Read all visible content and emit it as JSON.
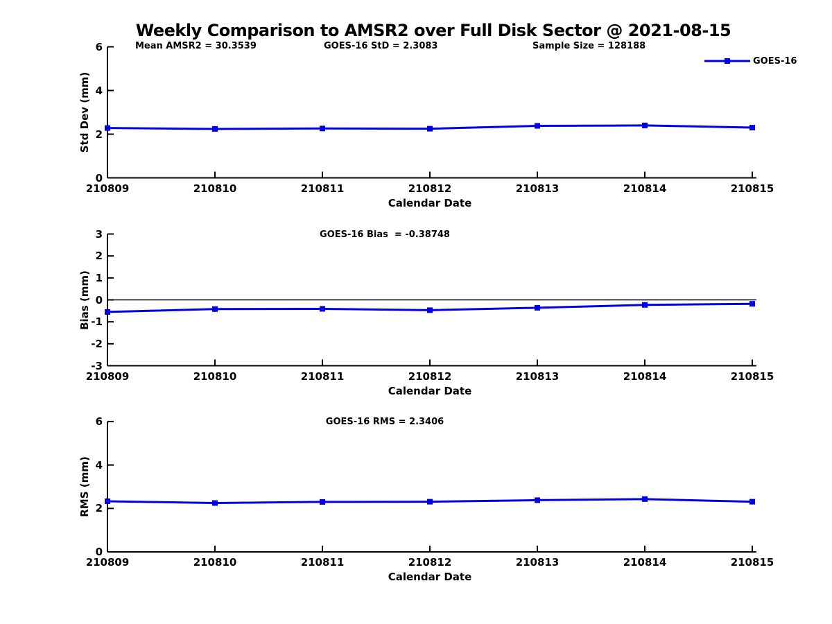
{
  "title": "Weekly Comparison to AMSR2 over Full Disk Sector @ 2021-08-15",
  "stats": {
    "mean_amsr2": "Mean AMSR2 = 30.3539",
    "goes_std": "GOES-16 StD = 2.3083",
    "sample_size": "Sample Size = 128188"
  },
  "legend": {
    "label": "GOES-16",
    "color": "#0000e6",
    "position": "top-right"
  },
  "chart_data": [
    {
      "type": "line",
      "subtitle": "",
      "ylabel": "Std Dev (mm)",
      "xlabel": "Calendar Date",
      "x": [
        "210809",
        "210810",
        "210811",
        "210812",
        "210813",
        "210814",
        "210815"
      ],
      "series": [
        {
          "name": "GOES-16",
          "values": [
            2.28,
            2.24,
            2.26,
            2.25,
            2.38,
            2.4,
            2.3
          ]
        }
      ],
      "ylim": [
        0,
        6
      ],
      "yticks": [
        0,
        2,
        4,
        6
      ],
      "zero_line": false,
      "grid": false,
      "marker": "square"
    },
    {
      "type": "line",
      "subtitle": "GOES-16 Bias  = -0.38748",
      "ylabel": "Bias (mm)",
      "xlabel": "Calendar Date",
      "x": [
        "210809",
        "210810",
        "210811",
        "210812",
        "210813",
        "210814",
        "210815"
      ],
      "series": [
        {
          "name": "GOES-16",
          "values": [
            -0.55,
            -0.42,
            -0.41,
            -0.47,
            -0.36,
            -0.23,
            -0.18
          ]
        }
      ],
      "ylim": [
        -3,
        3
      ],
      "yticks": [
        -3,
        -2,
        -1,
        0,
        1,
        2,
        3
      ],
      "zero_line": true,
      "grid": false,
      "marker": "square"
    },
    {
      "type": "line",
      "subtitle": "GOES-16 RMS = 2.3406",
      "ylabel": "RMS (mm)",
      "xlabel": "Calendar Date",
      "x": [
        "210809",
        "210810",
        "210811",
        "210812",
        "210813",
        "210814",
        "210815"
      ],
      "series": [
        {
          "name": "GOES-16",
          "values": [
            2.33,
            2.25,
            2.3,
            2.31,
            2.38,
            2.43,
            2.31
          ]
        }
      ],
      "ylim": [
        0,
        6
      ],
      "yticks": [
        0,
        2,
        4,
        6
      ],
      "zero_line": false,
      "grid": false,
      "marker": "square"
    }
  ]
}
